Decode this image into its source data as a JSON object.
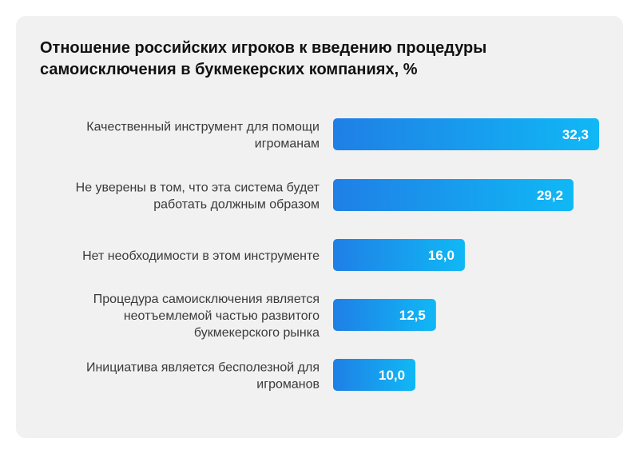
{
  "chart_data": {
    "type": "bar",
    "orientation": "horizontal",
    "title": "Отношение российских игроков к введению процедуры самоисключения в букмекерских компаниях, %",
    "categories": [
      [
        "Качественный инструмент для помощи",
        "игроманам"
      ],
      [
        "Не уверены в том, что эта система будет",
        "работать должным образом"
      ],
      [
        "Нет необходимости в этом инструменте"
      ],
      [
        "Процедура самоисключения является",
        "неотъемлемой частью развитого",
        "букмекерского рынка"
      ],
      [
        "Инициатива является бесполезной для",
        "игроманов"
      ]
    ],
    "values": [
      32.3,
      29.2,
      16.0,
      12.5,
      10.0
    ],
    "value_labels": [
      "32,3",
      "29,2",
      "16,0",
      "12,5",
      "10,0"
    ],
    "xlim": [
      0,
      32.3
    ],
    "grid": false,
    "colors": {
      "bar_start": "#1f7fe6",
      "bar_end": "#10b8f5",
      "background": "#f1f1f2",
      "label": "#3a3a3a",
      "value_text": "#ffffff"
    }
  }
}
